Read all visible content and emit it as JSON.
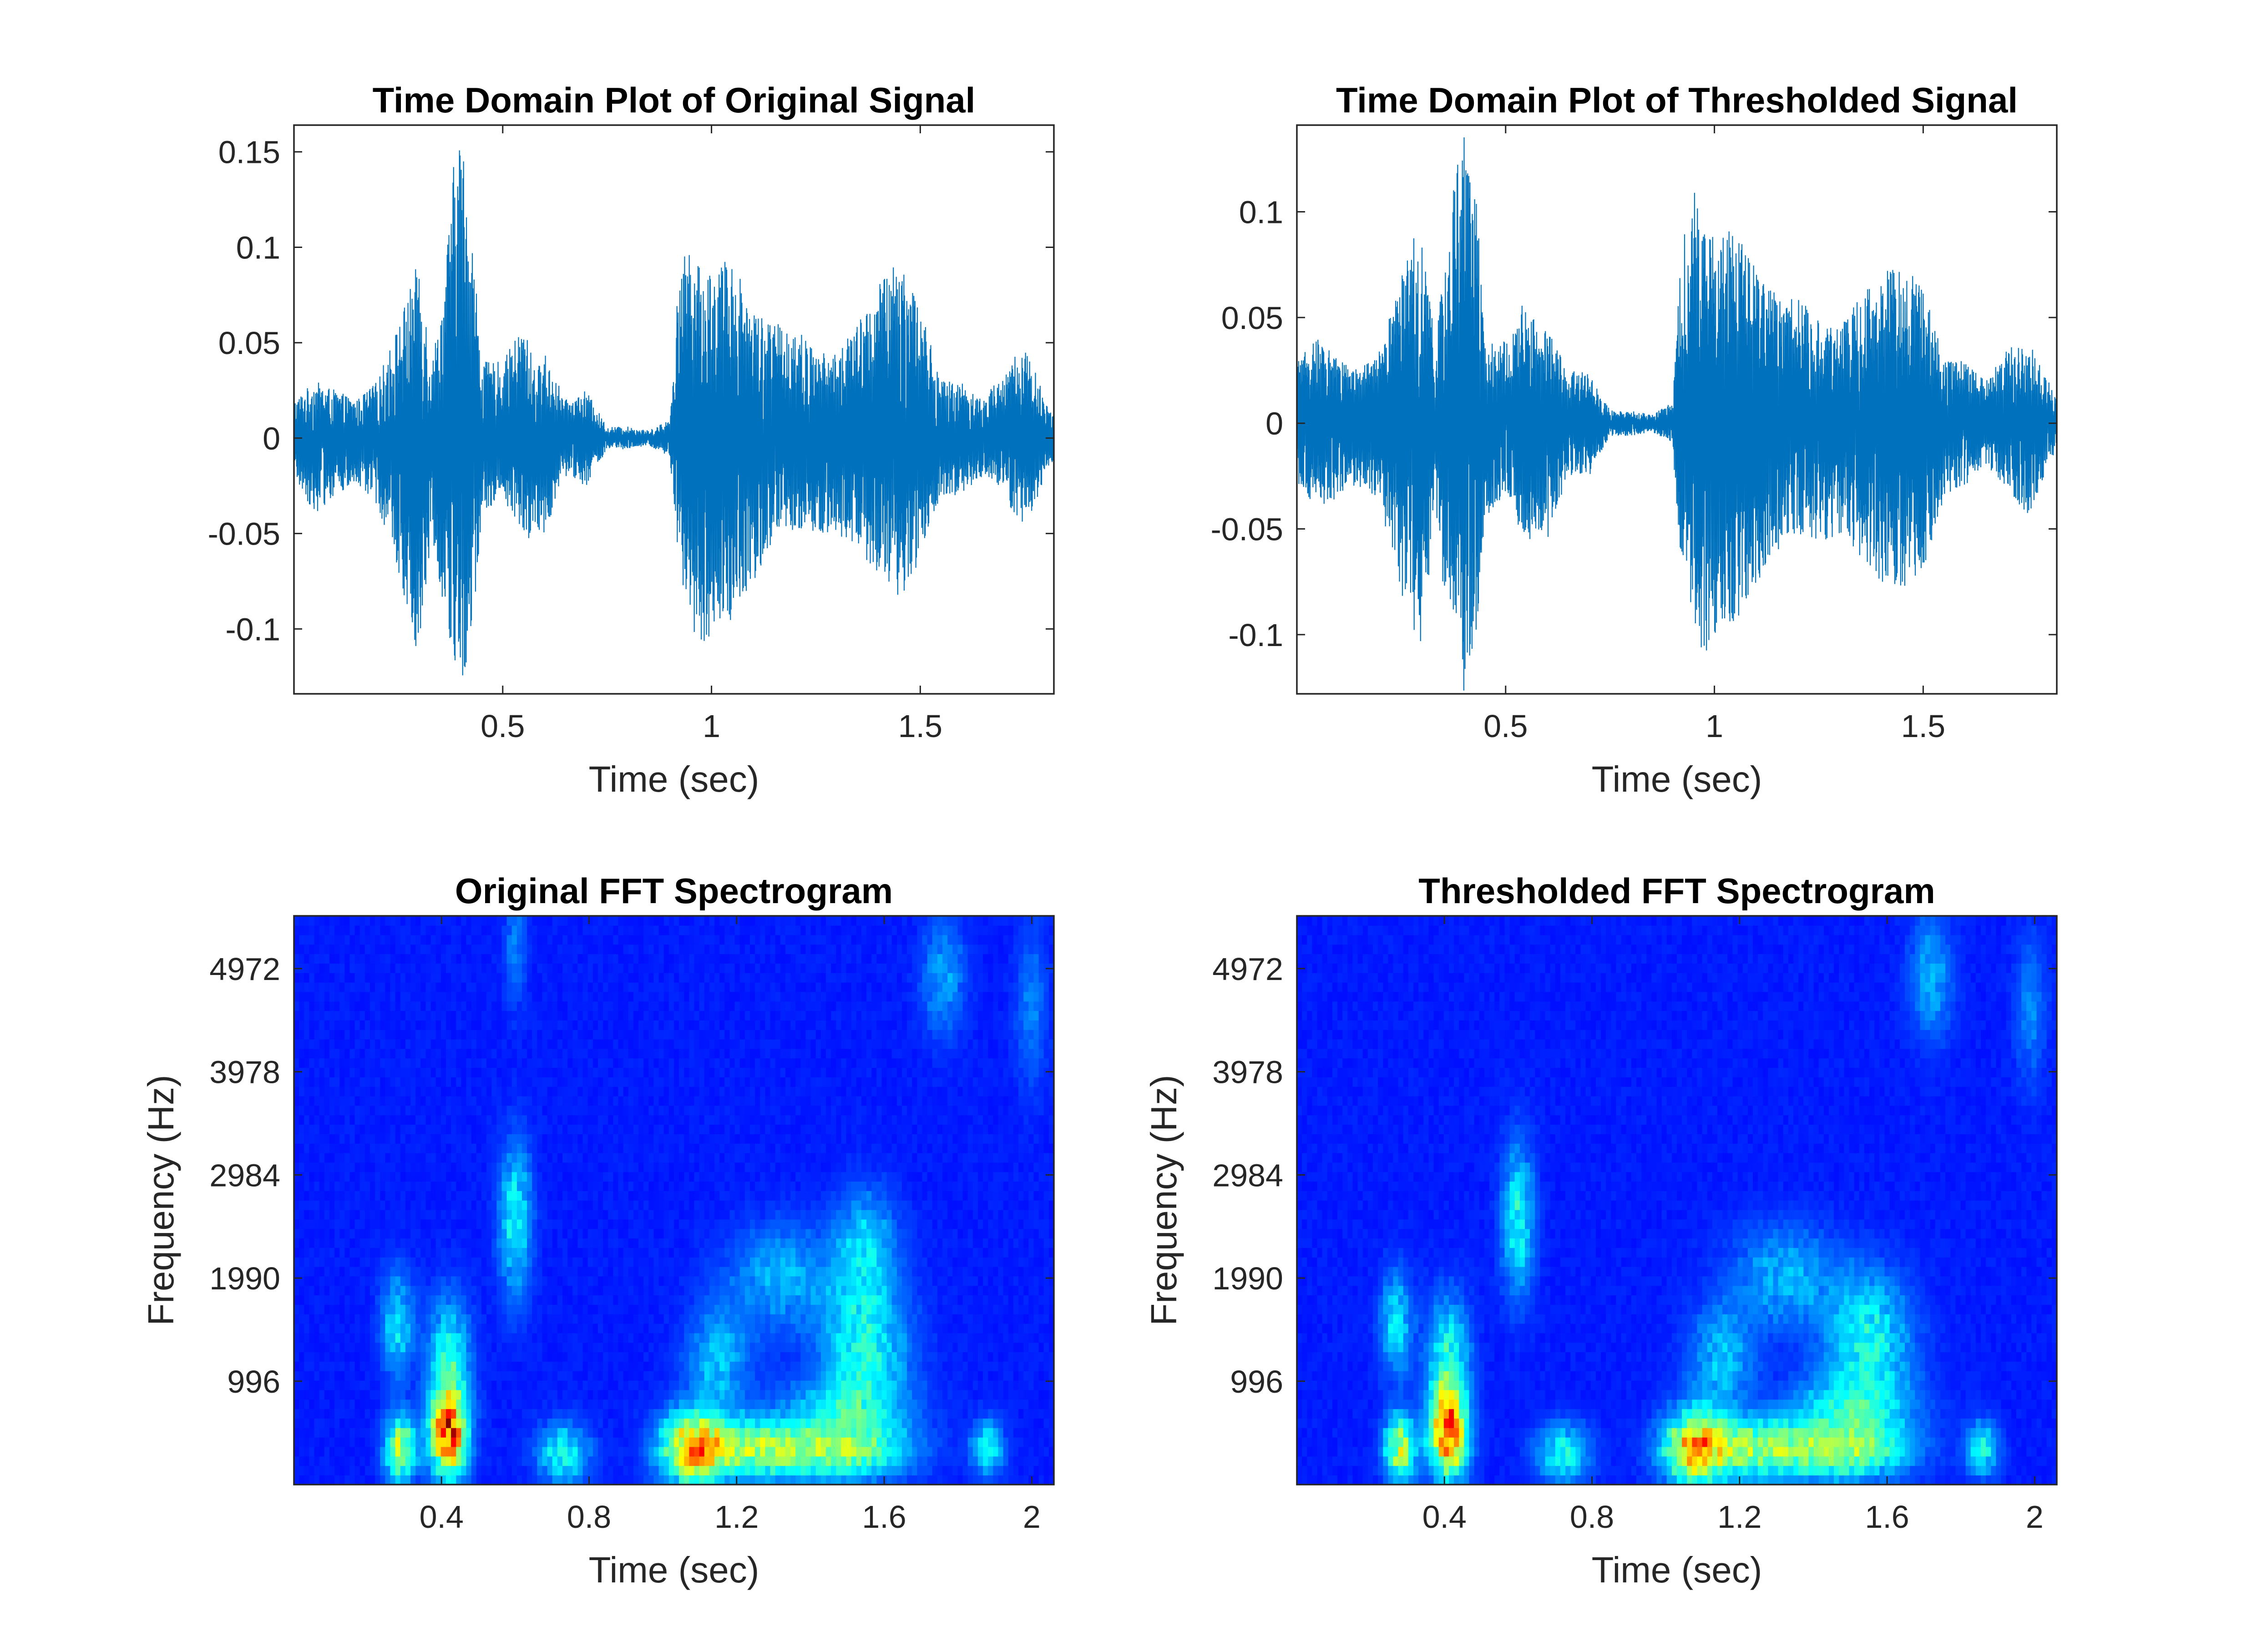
{
  "figure": {
    "colors": {
      "signal_line": "#0072BD",
      "axes": "#262626",
      "background": "#ffffff"
    }
  },
  "chart_data": [
    {
      "type": "line",
      "title": "Time Domain Plot of Original Signal",
      "xlabel": "Time (sec)",
      "ylabel": "",
      "xlim": [
        0,
        1.82
      ],
      "ylim": [
        -0.134,
        0.164
      ],
      "xticks": [
        "0.5",
        "1",
        "1.5"
      ],
      "xtick_values": [
        0.5,
        1,
        1.5
      ],
      "yticks": [
        "-0.1",
        "-0.05",
        "0",
        "0.05",
        "0.1",
        "0.15"
      ],
      "ytick_values": [
        -0.1,
        -0.05,
        0,
        0.05,
        0.1,
        0.15
      ],
      "grid": false,
      "series": [
        {
          "envelope_time": [
            0.0,
            0.05,
            0.1,
            0.15,
            0.2,
            0.25,
            0.28,
            0.3,
            0.33,
            0.36,
            0.38,
            0.4,
            0.43,
            0.45,
            0.5,
            0.55,
            0.58,
            0.6,
            0.65,
            0.7,
            0.75,
            0.8,
            0.85,
            0.9,
            0.92,
            0.95,
            0.97,
            1.0,
            1.05,
            1.1,
            1.15,
            1.2,
            1.25,
            1.3,
            1.35,
            1.4,
            1.45,
            1.5,
            1.55,
            1.6,
            1.65,
            1.7,
            1.75,
            1.8,
            1.82
          ],
          "envelope_max": [
            0.02,
            0.03,
            0.025,
            0.02,
            0.03,
            0.06,
            0.08,
            0.095,
            0.04,
            0.08,
            0.14,
            0.164,
            0.1,
            0.04,
            0.04,
            0.06,
            0.035,
            0.045,
            0.02,
            0.025,
            0.006,
            0.006,
            0.004,
            0.01,
            0.08,
            0.11,
            0.09,
            0.09,
            0.095,
            0.07,
            0.06,
            0.06,
            0.045,
            0.045,
            0.06,
            0.08,
            0.099,
            0.07,
            0.03,
            0.03,
            0.02,
            0.035,
            0.05,
            0.02,
            0.012
          ],
          "envelope_min": [
            -0.02,
            -0.04,
            -0.03,
            -0.025,
            -0.035,
            -0.07,
            -0.1,
            -0.115,
            -0.05,
            -0.09,
            -0.12,
            -0.134,
            -0.1,
            -0.04,
            -0.03,
            -0.055,
            -0.05,
            -0.05,
            -0.02,
            -0.025,
            -0.006,
            -0.006,
            -0.004,
            -0.01,
            -0.07,
            -0.09,
            -0.12,
            -0.1,
            -0.095,
            -0.075,
            -0.055,
            -0.05,
            -0.05,
            -0.05,
            -0.06,
            -0.075,
            -0.085,
            -0.065,
            -0.03,
            -0.03,
            -0.02,
            -0.03,
            -0.05,
            -0.02,
            -0.012
          ]
        }
      ]
    },
    {
      "type": "line",
      "title": "Time Domain Plot of Thresholded Signal",
      "xlabel": "Time (sec)",
      "ylabel": "",
      "xlim": [
        0,
        1.82
      ],
      "ylim": [
        -0.128,
        0.141
      ],
      "xticks": [
        "0.5",
        "1",
        "1.5"
      ],
      "xtick_values": [
        0.5,
        1,
        1.5
      ],
      "yticks": [
        "-0.1",
        "-0.05",
        "0",
        "0.05",
        "0.1"
      ],
      "ytick_values": [
        -0.1,
        -0.05,
        0,
        0.05,
        0.1
      ],
      "grid": false,
      "series": [
        {
          "envelope_time": [
            0.0,
            0.05,
            0.1,
            0.15,
            0.2,
            0.25,
            0.28,
            0.3,
            0.33,
            0.36,
            0.38,
            0.4,
            0.43,
            0.45,
            0.5,
            0.55,
            0.58,
            0.6,
            0.65,
            0.7,
            0.75,
            0.8,
            0.85,
            0.9,
            0.92,
            0.95,
            0.97,
            1.0,
            1.05,
            1.1,
            1.15,
            1.2,
            1.25,
            1.3,
            1.35,
            1.4,
            1.45,
            1.5,
            1.55,
            1.6,
            1.65,
            1.7,
            1.75,
            1.8,
            1.82
          ],
          "envelope_max": [
            0.03,
            0.04,
            0.03,
            0.025,
            0.035,
            0.07,
            0.09,
            0.085,
            0.04,
            0.08,
            0.12,
            0.141,
            0.11,
            0.04,
            0.04,
            0.065,
            0.04,
            0.045,
            0.025,
            0.025,
            0.006,
            0.006,
            0.004,
            0.01,
            0.08,
            0.115,
            0.09,
            0.095,
            0.09,
            0.075,
            0.06,
            0.06,
            0.05,
            0.045,
            0.06,
            0.07,
            0.078,
            0.065,
            0.03,
            0.03,
            0.02,
            0.035,
            0.04,
            0.02,
            0.012
          ],
          "envelope_min": [
            -0.03,
            -0.04,
            -0.035,
            -0.03,
            -0.04,
            -0.08,
            -0.1,
            -0.105,
            -0.05,
            -0.09,
            -0.11,
            -0.128,
            -0.1,
            -0.045,
            -0.035,
            -0.06,
            -0.05,
            -0.055,
            -0.025,
            -0.025,
            -0.006,
            -0.006,
            -0.004,
            -0.01,
            -0.07,
            -0.09,
            -0.115,
            -0.1,
            -0.095,
            -0.08,
            -0.06,
            -0.055,
            -0.055,
            -0.055,
            -0.065,
            -0.075,
            -0.078,
            -0.07,
            -0.035,
            -0.03,
            -0.02,
            -0.03,
            -0.045,
            -0.02,
            -0.012
          ]
        }
      ]
    },
    {
      "type": "heatmap",
      "title": "Original FFT Spectrogram",
      "xlabel": "Time (sec)",
      "ylabel": "Frequency (Hz)",
      "xlim": [
        0,
        2.06
      ],
      "ylim": [
        0,
        5480
      ],
      "xticks": [
        "0.4",
        "0.8",
        "1.2",
        "1.6",
        "2"
      ],
      "xtick_values": [
        0.4,
        0.8,
        1.2,
        1.6,
        2.0
      ],
      "yticks": [
        "996",
        "1990",
        "2984",
        "3978",
        "4972"
      ],
      "ytick_values": [
        996,
        1990,
        2984,
        3978,
        4972
      ],
      "colormap": "jet",
      "energy_blobs": [
        {
          "t": 0.29,
          "f": 350,
          "st": 0.03,
          "sf": 220,
          "a": 0.6
        },
        {
          "t": 0.42,
          "f": 500,
          "st": 0.035,
          "sf": 300,
          "a": 0.95
        },
        {
          "t": 0.42,
          "f": 1250,
          "st": 0.04,
          "sf": 400,
          "a": 0.35
        },
        {
          "t": 0.28,
          "f": 1550,
          "st": 0.03,
          "sf": 350,
          "a": 0.3
        },
        {
          "t": 0.6,
          "f": 2550,
          "st": 0.03,
          "sf": 500,
          "a": 0.35
        },
        {
          "t": 0.6,
          "f": 5200,
          "st": 0.02,
          "sf": 400,
          "a": 0.15
        },
        {
          "t": 0.73,
          "f": 300,
          "st": 0.05,
          "sf": 200,
          "a": 0.35
        },
        {
          "t": 1.08,
          "f": 350,
          "st": 0.06,
          "sf": 250,
          "a": 0.7
        },
        {
          "t": 1.25,
          "f": 350,
          "st": 0.12,
          "sf": 200,
          "a": 0.5
        },
        {
          "t": 1.5,
          "f": 300,
          "st": 0.12,
          "sf": 180,
          "a": 0.4
        },
        {
          "t": 1.15,
          "f": 1200,
          "st": 0.06,
          "sf": 350,
          "a": 0.25
        },
        {
          "t": 1.32,
          "f": 2000,
          "st": 0.1,
          "sf": 350,
          "a": 0.22
        },
        {
          "t": 1.55,
          "f": 1400,
          "st": 0.08,
          "sf": 450,
          "a": 0.35
        },
        {
          "t": 1.55,
          "f": 2350,
          "st": 0.06,
          "sf": 350,
          "a": 0.25
        },
        {
          "t": 1.5,
          "f": 700,
          "st": 0.12,
          "sf": 250,
          "a": 0.3
        },
        {
          "t": 1.76,
          "f": 4900,
          "st": 0.04,
          "sf": 400,
          "a": 0.2
        },
        {
          "t": 1.88,
          "f": 350,
          "st": 0.03,
          "sf": 180,
          "a": 0.35
        },
        {
          "t": 2.0,
          "f": 4600,
          "st": 0.03,
          "sf": 500,
          "a": 0.15
        }
      ]
    },
    {
      "type": "heatmap",
      "title": "Thresholded FFT Spectrogram",
      "xlabel": "Time (sec)",
      "ylabel": "Frequency (Hz)",
      "xlim": [
        0,
        2.06
      ],
      "ylim": [
        0,
        5480
      ],
      "xticks": [
        "0.4",
        "0.8",
        "1.2",
        "1.6",
        "2"
      ],
      "xtick_values": [
        0.4,
        0.8,
        1.2,
        1.6,
        2.0
      ],
      "yticks": [
        "996",
        "1990",
        "2984",
        "3978",
        "4972"
      ],
      "ytick_values": [
        996,
        1990,
        2984,
        3978,
        4972
      ],
      "colormap": "jet",
      "energy_blobs": [
        {
          "t": 0.28,
          "f": 350,
          "st": 0.03,
          "sf": 220,
          "a": 0.6
        },
        {
          "t": 0.41,
          "f": 500,
          "st": 0.035,
          "sf": 300,
          "a": 0.95
        },
        {
          "t": 0.41,
          "f": 1250,
          "st": 0.04,
          "sf": 400,
          "a": 0.35
        },
        {
          "t": 0.27,
          "f": 1550,
          "st": 0.03,
          "sf": 350,
          "a": 0.3
        },
        {
          "t": 0.6,
          "f": 2550,
          "st": 0.03,
          "sf": 500,
          "a": 0.35
        },
        {
          "t": 0.72,
          "f": 300,
          "st": 0.05,
          "sf": 200,
          "a": 0.35
        },
        {
          "t": 1.08,
          "f": 350,
          "st": 0.06,
          "sf": 250,
          "a": 0.7
        },
        {
          "t": 1.25,
          "f": 350,
          "st": 0.12,
          "sf": 200,
          "a": 0.5
        },
        {
          "t": 1.5,
          "f": 300,
          "st": 0.12,
          "sf": 180,
          "a": 0.4
        },
        {
          "t": 1.15,
          "f": 1200,
          "st": 0.06,
          "sf": 350,
          "a": 0.25
        },
        {
          "t": 1.32,
          "f": 2000,
          "st": 0.1,
          "sf": 350,
          "a": 0.22
        },
        {
          "t": 1.55,
          "f": 1400,
          "st": 0.08,
          "sf": 450,
          "a": 0.35
        },
        {
          "t": 1.5,
          "f": 700,
          "st": 0.12,
          "sf": 250,
          "a": 0.3
        },
        {
          "t": 1.72,
          "f": 4900,
          "st": 0.04,
          "sf": 400,
          "a": 0.22
        },
        {
          "t": 1.86,
          "f": 350,
          "st": 0.03,
          "sf": 180,
          "a": 0.35
        },
        {
          "t": 1.99,
          "f": 4600,
          "st": 0.03,
          "sf": 500,
          "a": 0.15
        }
      ]
    }
  ]
}
